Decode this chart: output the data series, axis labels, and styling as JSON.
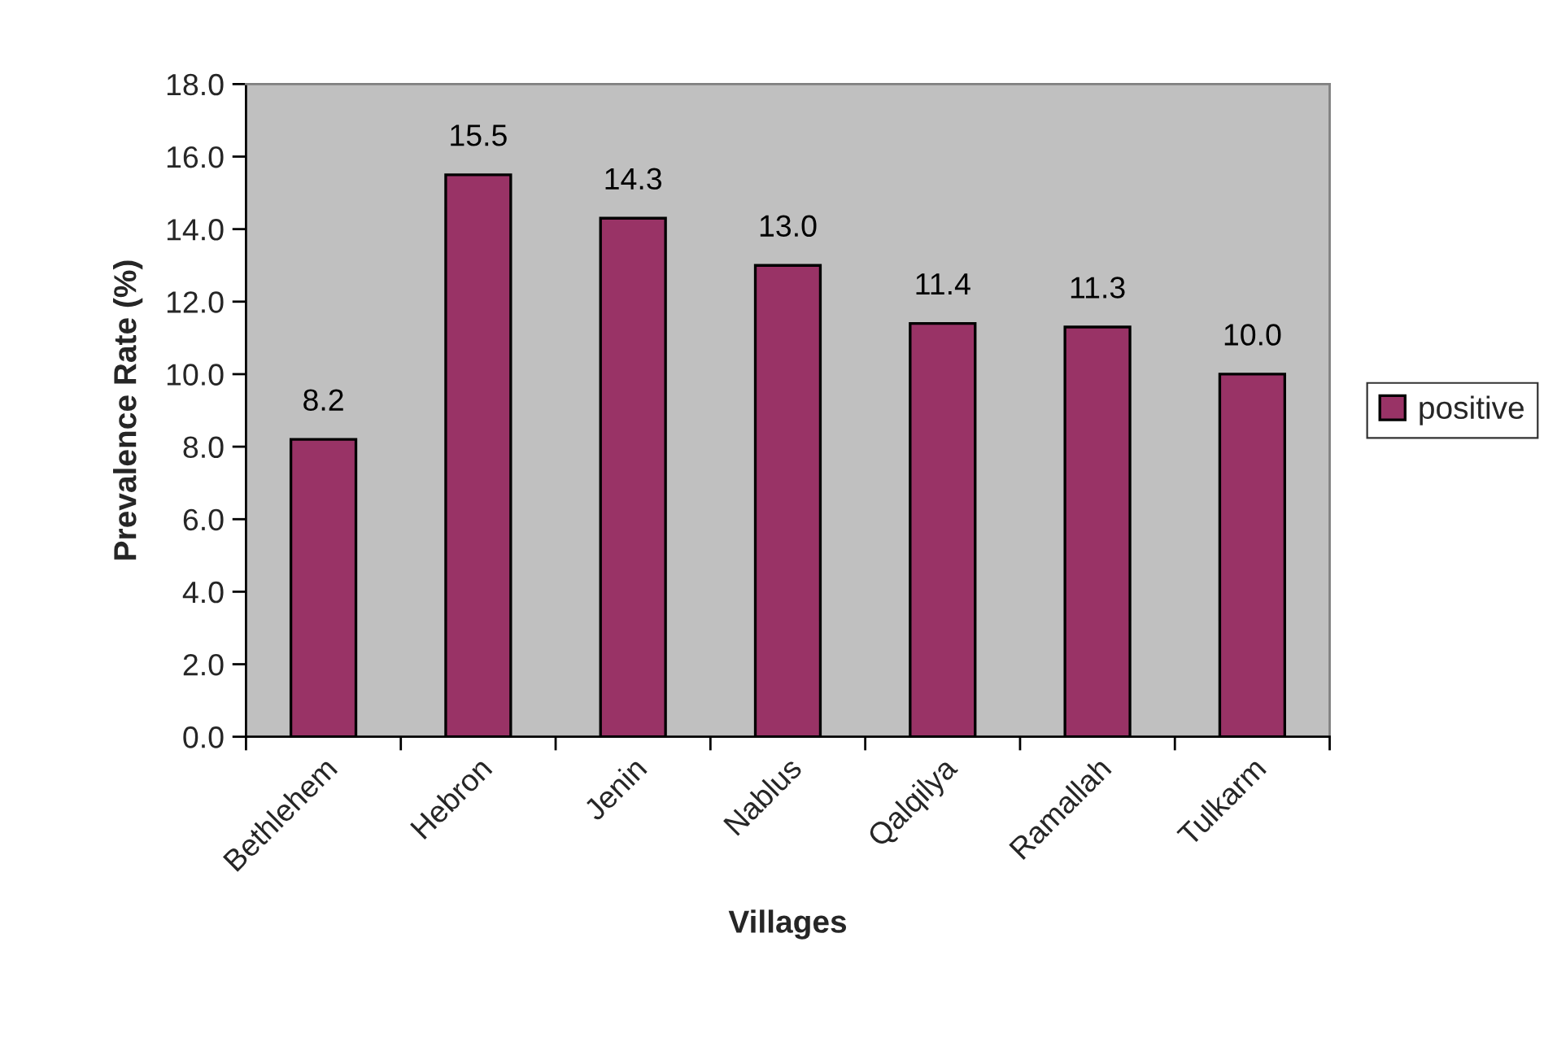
{
  "chart_data": {
    "type": "bar",
    "xlabel": "Villages",
    "ylabel": "Prevalence Rate (%)",
    "categories": [
      "Bethlehem",
      "Hebron",
      "Jenin",
      "Nablus",
      "Qalqilya",
      "Ramallah",
      "Tulkarm"
    ],
    "series": [
      {
        "name": "positive",
        "color": "#993366",
        "values": [
          8.2,
          15.5,
          14.3,
          13.0,
          11.4,
          11.3,
          10.0
        ],
        "value_labels": [
          "8.2",
          "15.5",
          "14.3",
          "13.0",
          "11.4",
          "11.3",
          "10.0"
        ]
      }
    ],
    "ylim": [
      0,
      18
    ],
    "yticks": [
      {
        "value": 0,
        "label": "0.0"
      },
      {
        "value": 2,
        "label": "2.0"
      },
      {
        "value": 4,
        "label": "4.0"
      },
      {
        "value": 6,
        "label": "6.0"
      },
      {
        "value": 8,
        "label": "8.0"
      },
      {
        "value": 10,
        "label": "10.0"
      },
      {
        "value": 12,
        "label": "12.0"
      },
      {
        "value": 14,
        "label": "14.0"
      },
      {
        "value": 16,
        "label": "16.0"
      },
      {
        "value": 18,
        "label": "18.0"
      }
    ],
    "legend": "right"
  }
}
